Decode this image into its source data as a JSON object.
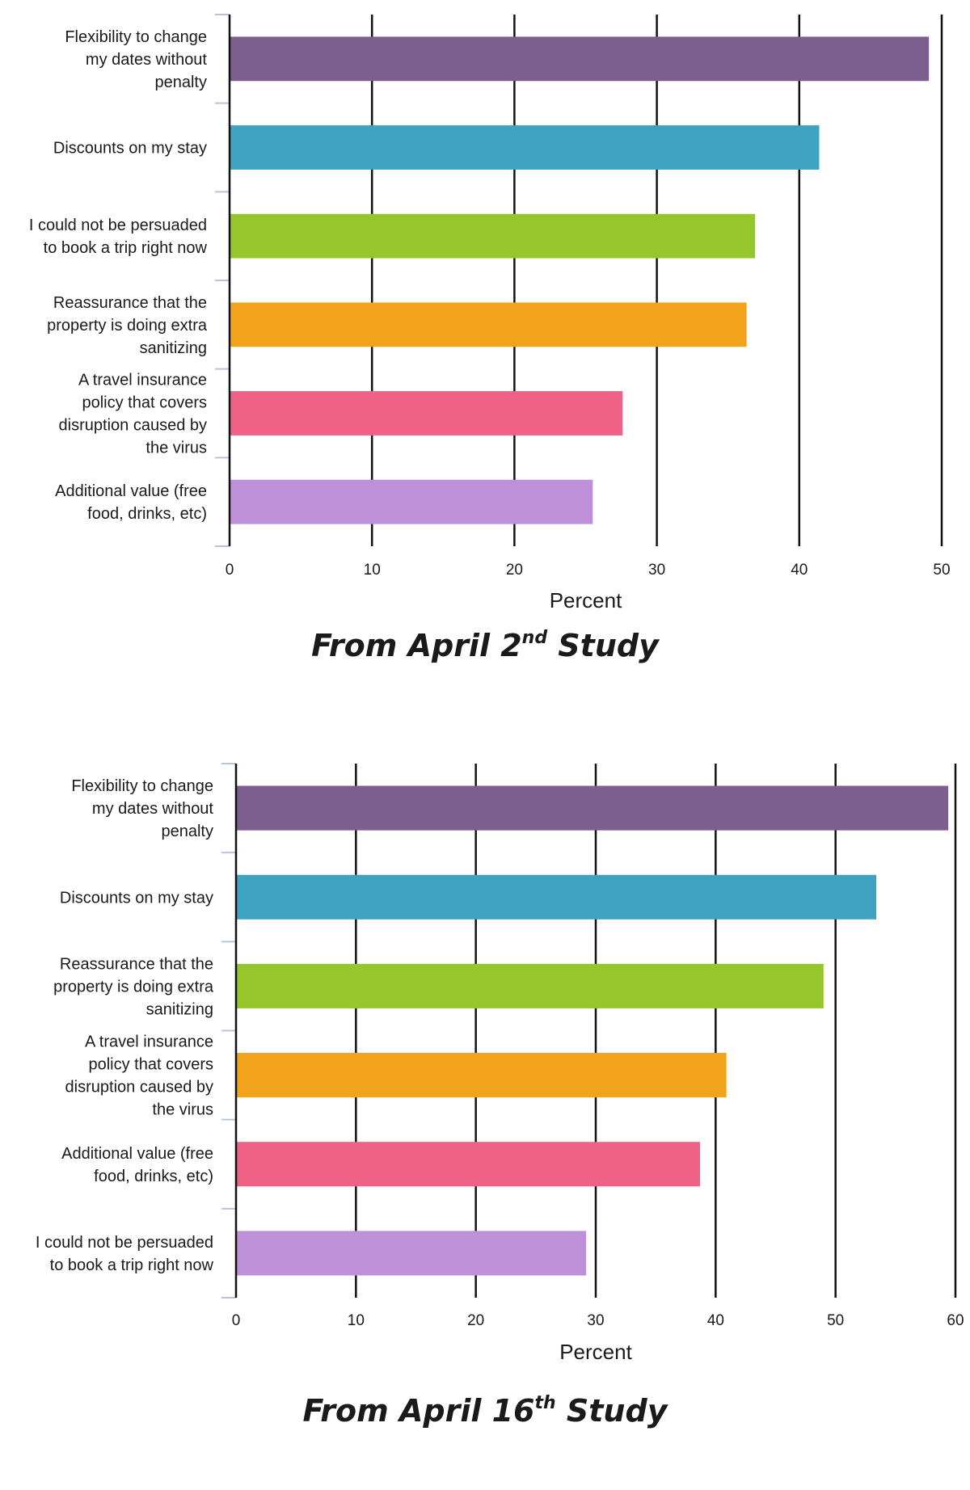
{
  "chart_data": [
    {
      "type": "bar",
      "orientation": "horizontal",
      "categories": [
        [
          "Flexibility to change",
          "my dates without",
          "penalty"
        ],
        [
          "Discounts on my stay"
        ],
        [
          "I could not be persuaded",
          "to book a trip right now"
        ],
        [
          "Reassurance that the",
          "property is doing extra",
          "sanitizing"
        ],
        [
          "A travel insurance",
          "policy that covers",
          "disruption caused by",
          "the virus"
        ],
        [
          "Additional value (free",
          "food, drinks, etc)"
        ]
      ],
      "values": [
        49.1,
        41.4,
        36.9,
        36.3,
        27.6,
        25.5
      ],
      "colors": [
        "#7c5f8e",
        "#3ea3c1",
        "#95c72a",
        "#f2a31c",
        "#ef6286",
        "#be90d9"
      ],
      "xlabel": "Percent",
      "xlim": [
        0,
        50
      ],
      "xticks": [
        0,
        10,
        20,
        30,
        40,
        50
      ],
      "grid": true,
      "caption": {
        "prefix": "From April 2",
        "sup": "nd",
        "suffix": " Study"
      }
    },
    {
      "type": "bar",
      "orientation": "horizontal",
      "categories": [
        [
          "Flexibility to change",
          "my dates without",
          "penalty"
        ],
        [
          "Discounts on my stay"
        ],
        [
          "Reassurance that the",
          "property is doing extra",
          "sanitizing"
        ],
        [
          "A travel insurance",
          "policy that covers",
          "disruption caused by",
          "the virus"
        ],
        [
          "Additional value (free",
          "food, drinks, etc)"
        ],
        [
          "I could not be persuaded",
          "to book a trip right now"
        ]
      ],
      "values": [
        59.4,
        53.4,
        49.0,
        40.9,
        38.7,
        29.2
      ],
      "colors": [
        "#7c5f8e",
        "#3ea3c1",
        "#95c72a",
        "#f2a31c",
        "#ef6286",
        "#be90d9"
      ],
      "xlabel": "Percent",
      "xlim": [
        0,
        60
      ],
      "xticks": [
        0,
        10,
        20,
        30,
        40,
        50,
        60
      ],
      "grid": true,
      "caption": {
        "prefix": "From April 16",
        "sup": "th",
        "suffix": " Study"
      }
    }
  ]
}
